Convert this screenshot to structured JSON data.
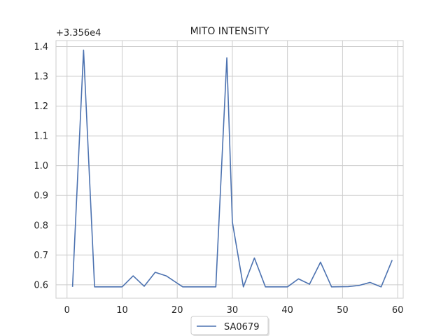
{
  "chart_data": {
    "type": "line",
    "title": "MITO INTENSITY",
    "xlabel": "",
    "ylabel": "",
    "y_offset_label": "+3.356e4",
    "xlim": [
      -2,
      61
    ],
    "ylim": [
      0.555,
      1.42
    ],
    "x_ticks": [
      0,
      10,
      20,
      30,
      40,
      50,
      60
    ],
    "y_ticks": [
      0.6,
      0.7,
      0.8,
      0.9,
      1.0,
      1.1,
      1.2,
      1.3,
      1.4
    ],
    "y_tick_labels": [
      "0.6",
      "0.7",
      "0.8",
      "0.9",
      "1.0",
      "1.1",
      "1.2",
      "1.3",
      "1.4"
    ],
    "grid": true,
    "legend_position": "bottom-center",
    "series": [
      {
        "name": "SA0679",
        "color": "#4c72b0",
        "x": [
          1,
          3,
          5,
          7,
          10,
          12,
          14,
          16,
          18,
          21,
          23,
          25,
          27,
          29,
          30,
          32,
          34,
          36,
          38,
          40,
          42,
          44,
          46,
          48,
          51,
          53,
          55,
          57,
          59
        ],
        "y": [
          0.593,
          1.388,
          0.593,
          0.593,
          0.593,
          0.63,
          0.595,
          0.642,
          0.63,
          0.593,
          0.593,
          0.593,
          0.593,
          1.362,
          0.811,
          0.593,
          0.69,
          0.593,
          0.593,
          0.593,
          0.62,
          0.602,
          0.676,
          0.593,
          0.594,
          0.598,
          0.608,
          0.593,
          0.683
        ]
      }
    ]
  }
}
